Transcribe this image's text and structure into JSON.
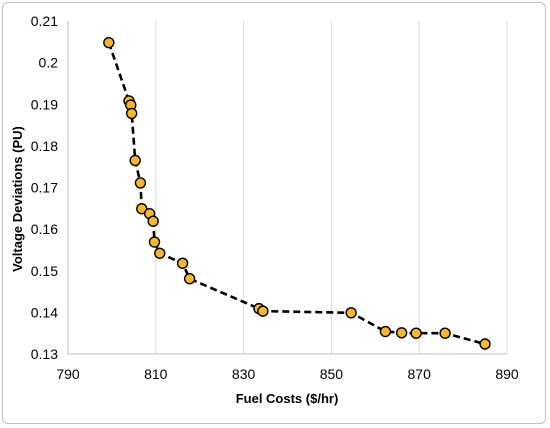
{
  "chart_data": {
    "type": "scatter",
    "xlabel": "Fuel Costs ($/hr)",
    "ylabel": "Voltage Deviations (PU)",
    "xlim": [
      790,
      890
    ],
    "ylim": [
      0.13,
      0.21
    ],
    "x_ticks": [
      "790",
      "810",
      "830",
      "850",
      "870",
      "890"
    ],
    "y_ticks": [
      "0.13",
      "0.14",
      "0.15",
      "0.16",
      "0.17",
      "0.18",
      "0.19",
      "0.2",
      "0.21"
    ],
    "grid": "vertical",
    "legend": "none",
    "line_style": "dashed",
    "colors": {
      "marker_fill": "#f5b732",
      "marker_edge": "#000000",
      "line": "#000000",
      "grid": "#d9d9d9",
      "axis": "#bfbfbf"
    },
    "series": [
      {
        "x": [
          799.3,
          803.9,
          804.3,
          804.5,
          805.3,
          806.5,
          806.8,
          808.6,
          809.4,
          809.7,
          810.9,
          816.1,
          817.7,
          833.5,
          834.4,
          854.5,
          862.3,
          866.0,
          869.3,
          875.9,
          885.0
        ],
        "y": [
          0.2048,
          0.1908,
          0.1898,
          0.1878,
          0.1765,
          0.1711,
          0.1649,
          0.1637,
          0.1619,
          0.1569,
          0.1542,
          0.1518,
          0.1481,
          0.1409,
          0.1403,
          0.1399,
          0.1354,
          0.1351,
          0.135,
          0.135,
          0.1324
        ]
      }
    ]
  }
}
